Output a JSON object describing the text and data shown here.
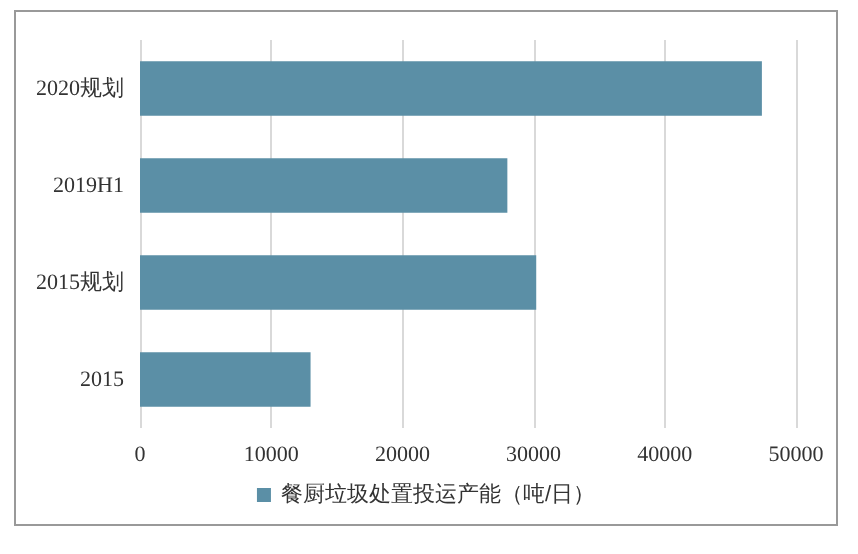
{
  "chart_data": {
    "type": "bar",
    "orientation": "horizontal",
    "categories": [
      "2020规划",
      "2019H1",
      "2015规划",
      "2015"
    ],
    "series": [
      {
        "name": "餐厨垃圾处置投运产能（吨/日）",
        "color": "#5b8fa6",
        "values": [
          47400,
          28000,
          30200,
          13000
        ]
      }
    ],
    "xlim": [
      0,
      50000
    ],
    "xticks": [
      0,
      10000,
      20000,
      30000,
      40000,
      50000
    ],
    "grid": "x",
    "legend": "bottom"
  }
}
